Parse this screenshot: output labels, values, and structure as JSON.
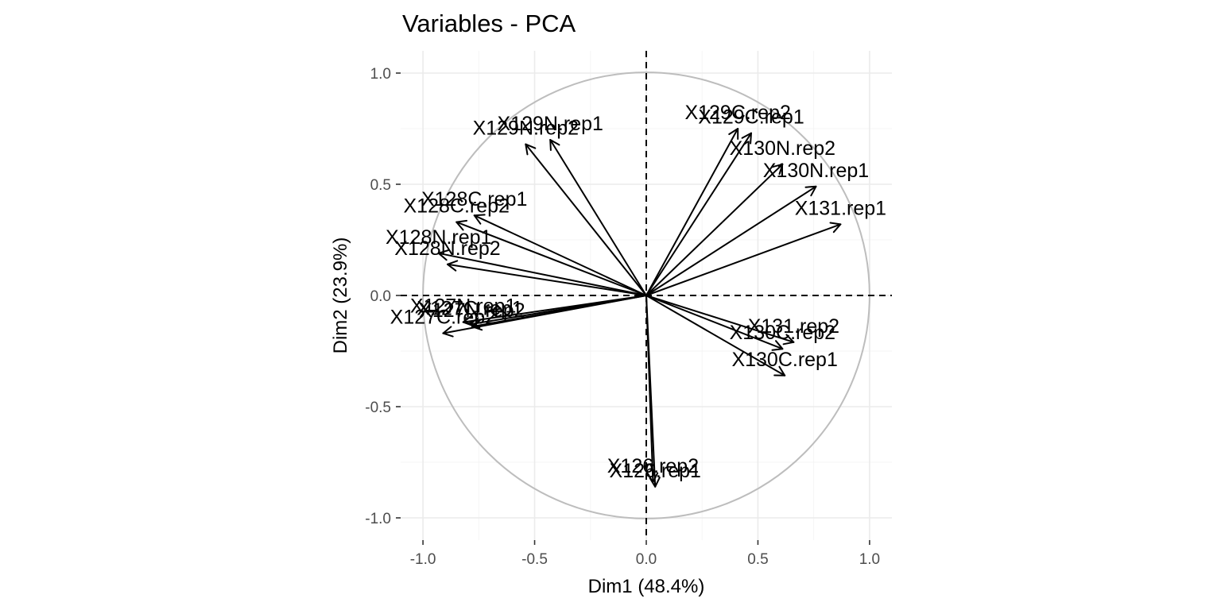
{
  "chart_data": {
    "type": "scatter",
    "title": "Variables - PCA",
    "xlabel": "Dim1 (48.4%)",
    "ylabel": "Dim2 (23.9%)",
    "xlim": [
      -1.1,
      1.1
    ],
    "ylim": [
      -1.1,
      1.1
    ],
    "xticks": [
      "-1.0",
      "-0.5",
      "0.0",
      "0.5",
      "1.0"
    ],
    "yticks": [
      "-1.0",
      "-0.5",
      "0.0",
      "0.5",
      "1.0"
    ],
    "grid": true,
    "correlation_circle": true,
    "variables": [
      {
        "name": "X126.rep1",
        "x": 0.04,
        "y": -0.86
      },
      {
        "name": "X126.rep2",
        "x": 0.03,
        "y": -0.84
      },
      {
        "name": "X127C.rep1",
        "x": -0.79,
        "y": -0.13
      },
      {
        "name": "X127C.rep2",
        "x": -0.91,
        "y": -0.17
      },
      {
        "name": "X127N.rep1",
        "x": -0.82,
        "y": -0.12
      },
      {
        "name": "X127N.rep2",
        "x": -0.78,
        "y": -0.14
      },
      {
        "name": "X128C.rep1",
        "x": -0.77,
        "y": 0.36
      },
      {
        "name": "X128C.rep2",
        "x": -0.85,
        "y": 0.33
      },
      {
        "name": "X128N.rep1",
        "x": -0.93,
        "y": 0.19
      },
      {
        "name": "X128N.rep2",
        "x": -0.89,
        "y": 0.14
      },
      {
        "name": "X129C.rep1",
        "x": 0.47,
        "y": 0.73
      },
      {
        "name": "X129C.rep2",
        "x": 0.41,
        "y": 0.75
      },
      {
        "name": "X129N.rep1",
        "x": -0.43,
        "y": 0.7
      },
      {
        "name": "X129N.rep2",
        "x": -0.54,
        "y": 0.68
      },
      {
        "name": "X130C.rep1",
        "x": 0.62,
        "y": -0.36
      },
      {
        "name": "X130C.rep2",
        "x": 0.61,
        "y": -0.24
      },
      {
        "name": "X130N.rep1",
        "x": 0.76,
        "y": 0.49
      },
      {
        "name": "X130N.rep2",
        "x": 0.61,
        "y": 0.59
      },
      {
        "name": "X131.rep1",
        "x": 0.87,
        "y": 0.32
      },
      {
        "name": "X131.rep2",
        "x": 0.66,
        "y": -0.21
      }
    ]
  }
}
